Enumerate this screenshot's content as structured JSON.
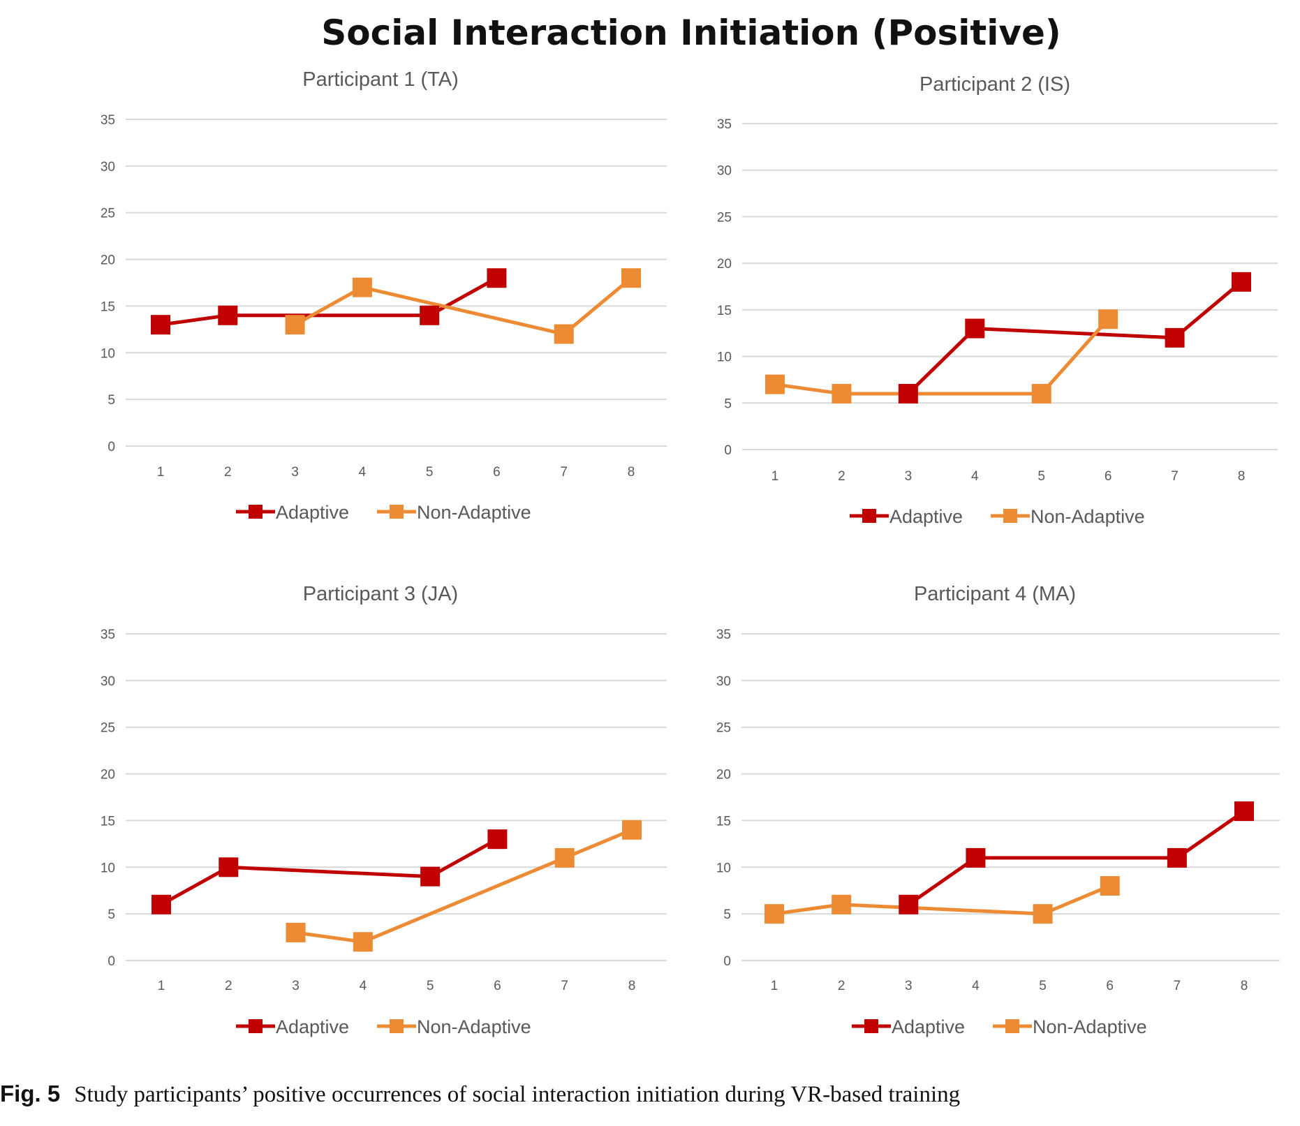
{
  "title": "Social Interaction Initiation (Positive)",
  "caption": {
    "label": "Fig. 5",
    "text": "Study participants’ positive occurrences of social interaction initiation during VR-based training"
  },
  "colors": {
    "adaptive": "#c00000",
    "non_adaptive": "#ed8b35"
  },
  "chart_data": [
    {
      "type": "line",
      "title": "Participant 1 (TA)",
      "x": [
        "1",
        "2",
        "3",
        "4",
        "5",
        "6",
        "7",
        "8"
      ],
      "ylim": [
        0,
        35
      ],
      "yticks": [
        "0",
        "5",
        "10",
        "15",
        "20",
        "25",
        "30",
        "35"
      ],
      "grid": true,
      "legend": "bottom",
      "series": [
        {
          "name": "Adaptive",
          "values": [
            13,
            14,
            null,
            null,
            14,
            18,
            null,
            null
          ]
        },
        {
          "name": "Non-Adaptive",
          "values": [
            null,
            null,
            13,
            17,
            null,
            null,
            12,
            18
          ]
        }
      ]
    },
    {
      "type": "line",
      "title": "Participant 2 (IS)",
      "x": [
        "1",
        "2",
        "3",
        "4",
        "5",
        "6",
        "7",
        "8"
      ],
      "ylim": [
        0,
        35
      ],
      "yticks": [
        "0",
        "5",
        "10",
        "15",
        "20",
        "25",
        "30",
        "35"
      ],
      "grid": true,
      "legend": "bottom",
      "series": [
        {
          "name": "Adaptive",
          "values": [
            null,
            null,
            6,
            13,
            null,
            null,
            12,
            18
          ]
        },
        {
          "name": "Non-Adaptive",
          "values": [
            7,
            6,
            null,
            null,
            6,
            14,
            null,
            null
          ]
        }
      ]
    },
    {
      "type": "line",
      "title": "Participant 3 (JA)",
      "x": [
        "1",
        "2",
        "3",
        "4",
        "5",
        "6",
        "7",
        "8"
      ],
      "ylim": [
        0,
        35
      ],
      "yticks": [
        "0",
        "5",
        "10",
        "15",
        "20",
        "25",
        "30",
        "35"
      ],
      "grid": true,
      "legend": "bottom",
      "series": [
        {
          "name": "Adaptive",
          "values": [
            6,
            10,
            null,
            null,
            9,
            13,
            null,
            null
          ]
        },
        {
          "name": "Non-Adaptive",
          "values": [
            null,
            null,
            3,
            2,
            null,
            null,
            11,
            14
          ]
        }
      ]
    },
    {
      "type": "line",
      "title": "Participant 4 (MA)",
      "x": [
        "1",
        "2",
        "3",
        "4",
        "5",
        "6",
        "7",
        "8"
      ],
      "ylim": [
        0,
        35
      ],
      "yticks": [
        "0",
        "5",
        "10",
        "15",
        "20",
        "25",
        "30",
        "35"
      ],
      "grid": true,
      "legend": "bottom",
      "series": [
        {
          "name": "Adaptive",
          "values": [
            null,
            null,
            6,
            11,
            null,
            null,
            11,
            16
          ]
        },
        {
          "name": "Non-Adaptive",
          "values": [
            5,
            6,
            null,
            null,
            5,
            8,
            null,
            null
          ]
        }
      ]
    }
  ]
}
